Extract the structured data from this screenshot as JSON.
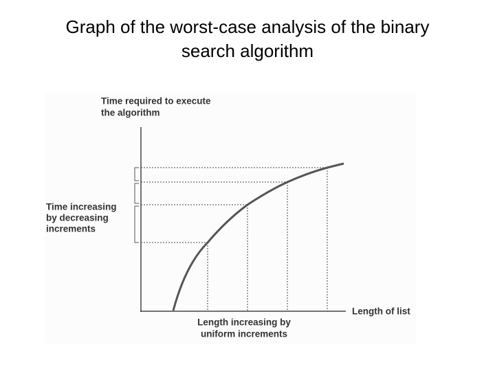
{
  "header": {
    "title_lines": [
      "Graph of the worst-case analysis of the binary",
      "search algorithm"
    ]
  },
  "diagram": {
    "y_axis_label": [
      "Time required to execute",
      "the algorithm"
    ],
    "x_axis_label": "Length of list",
    "left_annotation": [
      "Time increasing",
      "by decreasing",
      "increments"
    ],
    "bottom_annotation": [
      "Length increasing by",
      "uniform increments"
    ]
  }
}
